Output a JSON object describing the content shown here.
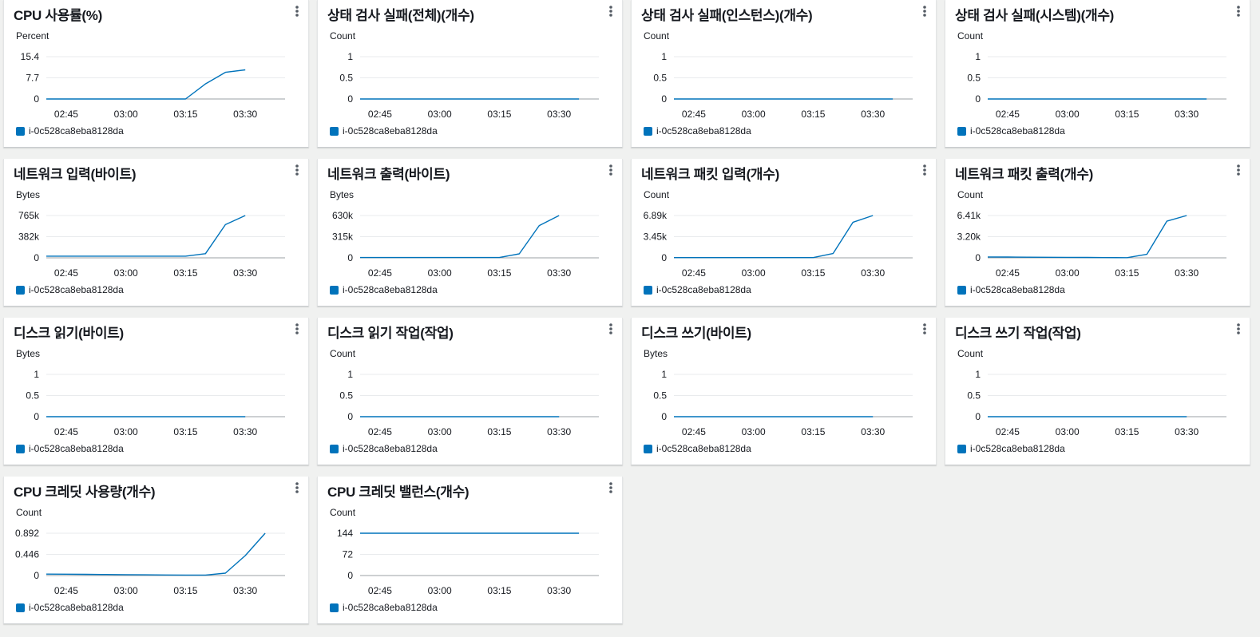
{
  "colors": {
    "series": "#0073bb",
    "grid": "#e9ebed",
    "axis": "#9ba0a6"
  },
  "icons": {
    "menu": "vertical-ellipsis-icon"
  },
  "x_ticks": [
    "02:45",
    "03:00",
    "03:15",
    "03:30"
  ],
  "widgets": [
    {
      "title": "CPU 사용률(%)",
      "chart_data": {
        "type": "line",
        "title": "CPU 사용률(%)",
        "ylabel": "Percent",
        "y_ticks": [
          "15.4",
          "7.7",
          "0"
        ],
        "ylim": [
          0,
          15.4
        ],
        "x": [
          "02:40",
          "02:45",
          "02:50",
          "02:55",
          "03:00",
          "03:05",
          "03:10",
          "03:15",
          "03:20",
          "03:25",
          "03:30"
        ],
        "series": [
          {
            "name": "i-0c528ca8eba8128da",
            "values": [
              0,
              0,
              0,
              0,
              0,
              0,
              0,
              0,
              5.5,
              9.7,
              10.6
            ]
          }
        ]
      }
    },
    {
      "title": "상태 검사 실패(전체)(개수)",
      "chart_data": {
        "type": "line",
        "title": "상태 검사 실패(전체)(개수)",
        "ylabel": "Count",
        "y_ticks": [
          "1",
          "0.5",
          "0"
        ],
        "ylim": [
          0,
          1
        ],
        "x": [
          "02:40",
          "02:45",
          "02:50",
          "02:55",
          "03:00",
          "03:05",
          "03:10",
          "03:15",
          "03:20",
          "03:25",
          "03:30",
          "03:35"
        ],
        "series": [
          {
            "name": "i-0c528ca8eba8128da",
            "values": [
              0,
              0,
              0,
              0,
              0,
              0,
              0,
              0,
              0,
              0,
              0,
              0
            ]
          }
        ]
      }
    },
    {
      "title": "상태 검사 실패(인스턴스)(개수)",
      "chart_data": {
        "type": "line",
        "title": "상태 검사 실패(인스턴스)(개수)",
        "ylabel": "Count",
        "y_ticks": [
          "1",
          "0.5",
          "0"
        ],
        "ylim": [
          0,
          1
        ],
        "x": [
          "02:40",
          "02:45",
          "02:50",
          "02:55",
          "03:00",
          "03:05",
          "03:10",
          "03:15",
          "03:20",
          "03:25",
          "03:30",
          "03:35"
        ],
        "series": [
          {
            "name": "i-0c528ca8eba8128da",
            "values": [
              0,
              0,
              0,
              0,
              0,
              0,
              0,
              0,
              0,
              0,
              0,
              0
            ]
          }
        ]
      }
    },
    {
      "title": "상태 검사 실패(시스템)(개수)",
      "chart_data": {
        "type": "line",
        "title": "상태 검사 실패(시스템)(개수)",
        "ylabel": "Count",
        "y_ticks": [
          "1",
          "0.5",
          "0"
        ],
        "ylim": [
          0,
          1
        ],
        "x": [
          "02:40",
          "02:45",
          "02:50",
          "02:55",
          "03:00",
          "03:05",
          "03:10",
          "03:15",
          "03:20",
          "03:25",
          "03:30",
          "03:35"
        ],
        "series": [
          {
            "name": "i-0c528ca8eba8128da",
            "values": [
              0,
              0,
              0,
              0,
              0,
              0,
              0,
              0,
              0,
              0,
              0,
              0
            ]
          }
        ]
      }
    },
    {
      "title": "네트워크 입력(바이트)",
      "chart_data": {
        "type": "line",
        "title": "네트워크 입력(바이트)",
        "ylabel": "Bytes",
        "y_ticks": [
          "765k",
          "382k",
          "0"
        ],
        "ylim": [
          0,
          765000
        ],
        "x": [
          "02:40",
          "02:45",
          "02:50",
          "02:55",
          "03:00",
          "03:05",
          "03:10",
          "03:15",
          "03:20",
          "03:25",
          "03:30"
        ],
        "series": [
          {
            "name": "i-0c528ca8eba8128da",
            "values": [
              30000,
              30000,
              30000,
              30000,
              30000,
              30000,
              30000,
              30000,
              75000,
              600000,
              765000
            ]
          }
        ]
      }
    },
    {
      "title": "네트워크 출력(바이트)",
      "chart_data": {
        "type": "line",
        "title": "네트워크 출력(바이트)",
        "ylabel": "Bytes",
        "y_ticks": [
          "630k",
          "315k",
          "0"
        ],
        "ylim": [
          0,
          630000
        ],
        "x": [
          "02:40",
          "02:45",
          "02:50",
          "02:55",
          "03:00",
          "03:05",
          "03:10",
          "03:15",
          "03:20",
          "03:25",
          "03:30"
        ],
        "series": [
          {
            "name": "i-0c528ca8eba8128da",
            "values": [
              5000,
              5000,
              5000,
              5000,
              5000,
              5000,
              5000,
              5000,
              60000,
              480000,
              630000
            ]
          }
        ]
      }
    },
    {
      "title": "네트워크 패킷 입력(개수)",
      "chart_data": {
        "type": "line",
        "title": "네트워크 패킷 입력(개수)",
        "ylabel": "Count",
        "y_ticks": [
          "6.89k",
          "3.45k",
          "0"
        ],
        "ylim": [
          0,
          6890
        ],
        "x": [
          "02:40",
          "02:45",
          "02:50",
          "02:55",
          "03:00",
          "03:05",
          "03:10",
          "03:15",
          "03:20",
          "03:25",
          "03:30"
        ],
        "series": [
          {
            "name": "i-0c528ca8eba8128da",
            "values": [
              40,
              40,
              40,
              40,
              40,
              40,
              40,
              40,
              700,
              5800,
              6890
            ]
          }
        ]
      }
    },
    {
      "title": "네트워크 패킷 출력(개수)",
      "chart_data": {
        "type": "line",
        "title": "네트워크 패킷 출력(개수)",
        "ylabel": "Count",
        "y_ticks": [
          "6.41k",
          "3.20k",
          "0"
        ],
        "ylim": [
          0,
          6410
        ],
        "x": [
          "02:40",
          "02:45",
          "02:50",
          "02:55",
          "03:00",
          "03:05",
          "03:10",
          "03:15",
          "03:20",
          "03:25",
          "03:30"
        ],
        "series": [
          {
            "name": "i-0c528ca8eba8128da",
            "values": [
              130,
              115,
              100,
              85,
              70,
              55,
              40,
              30,
              530,
              5550,
              6410
            ]
          }
        ]
      }
    },
    {
      "title": "디스크 읽기(바이트)",
      "chart_data": {
        "type": "line",
        "title": "디스크 읽기(바이트)",
        "ylabel": "Bytes",
        "y_ticks": [
          "1",
          "0.5",
          "0"
        ],
        "ylim": [
          0,
          1
        ],
        "x": [
          "02:40",
          "02:45",
          "02:50",
          "02:55",
          "03:00",
          "03:05",
          "03:10",
          "03:15",
          "03:20",
          "03:25",
          "03:30"
        ],
        "series": [
          {
            "name": "i-0c528ca8eba8128da",
            "values": [
              0,
              0,
              0,
              0,
              0,
              0,
              0,
              0,
              0,
              0,
              0
            ]
          }
        ]
      }
    },
    {
      "title": "디스크 읽기 작업(작업)",
      "chart_data": {
        "type": "line",
        "title": "디스크 읽기 작업(작업)",
        "ylabel": "Count",
        "y_ticks": [
          "1",
          "0.5",
          "0"
        ],
        "ylim": [
          0,
          1
        ],
        "x": [
          "02:40",
          "02:45",
          "02:50",
          "02:55",
          "03:00",
          "03:05",
          "03:10",
          "03:15",
          "03:20",
          "03:25",
          "03:30"
        ],
        "series": [
          {
            "name": "i-0c528ca8eba8128da",
            "values": [
              0,
              0,
              0,
              0,
              0,
              0,
              0,
              0,
              0,
              0,
              0
            ]
          }
        ]
      }
    },
    {
      "title": "디스크 쓰기(바이트)",
      "chart_data": {
        "type": "line",
        "title": "디스크 쓰기(바이트)",
        "ylabel": "Bytes",
        "y_ticks": [
          "1",
          "0.5",
          "0"
        ],
        "ylim": [
          0,
          1
        ],
        "x": [
          "02:40",
          "02:45",
          "02:50",
          "02:55",
          "03:00",
          "03:05",
          "03:10",
          "03:15",
          "03:20",
          "03:25",
          "03:30"
        ],
        "series": [
          {
            "name": "i-0c528ca8eba8128da",
            "values": [
              0,
              0,
              0,
              0,
              0,
              0,
              0,
              0,
              0,
              0,
              0
            ]
          }
        ]
      }
    },
    {
      "title": "디스크 쓰기 작업(작업)",
      "chart_data": {
        "type": "line",
        "title": "디스크 쓰기 작업(작업)",
        "ylabel": "Count",
        "y_ticks": [
          "1",
          "0.5",
          "0"
        ],
        "ylim": [
          0,
          1
        ],
        "x": [
          "02:40",
          "02:45",
          "02:50",
          "02:55",
          "03:00",
          "03:05",
          "03:10",
          "03:15",
          "03:20",
          "03:25",
          "03:30"
        ],
        "series": [
          {
            "name": "i-0c528ca8eba8128da",
            "values": [
              0,
              0,
              0,
              0,
              0,
              0,
              0,
              0,
              0,
              0,
              0
            ]
          }
        ]
      }
    },
    {
      "title": "CPU 크레딧 사용량(개수)",
      "chart_data": {
        "type": "line",
        "title": "CPU 크레딧 사용량(개수)",
        "ylabel": "Count",
        "y_ticks": [
          "0.892",
          "0.446",
          "0"
        ],
        "ylim": [
          0,
          0.892
        ],
        "x": [
          "02:40",
          "02:45",
          "02:50",
          "02:55",
          "03:00",
          "03:05",
          "03:10",
          "03:15",
          "03:20",
          "03:25",
          "03:30",
          "03:35"
        ],
        "series": [
          {
            "name": "i-0c528ca8eba8128da",
            "values": [
              0.03,
              0.028,
              0.025,
              0.022,
              0.018,
              0.015,
              0.012,
              0.01,
              0.01,
              0.05,
              0.42,
              0.892
            ]
          }
        ]
      }
    },
    {
      "title": "CPU 크레딧 밸런스(개수)",
      "chart_data": {
        "type": "line",
        "title": "CPU 크레딧 밸런스(개수)",
        "ylabel": "Count",
        "y_ticks": [
          "144",
          "72",
          "0"
        ],
        "ylim": [
          0,
          144
        ],
        "x": [
          "02:40",
          "02:45",
          "02:50",
          "02:55",
          "03:00",
          "03:05",
          "03:10",
          "03:15",
          "03:20",
          "03:25",
          "03:30",
          "03:35"
        ],
        "series": [
          {
            "name": "i-0c528ca8eba8128da",
            "values": [
              144,
              144,
              144,
              144,
              144,
              144,
              144,
              144,
              144,
              144,
              144,
              144
            ]
          }
        ]
      }
    }
  ]
}
